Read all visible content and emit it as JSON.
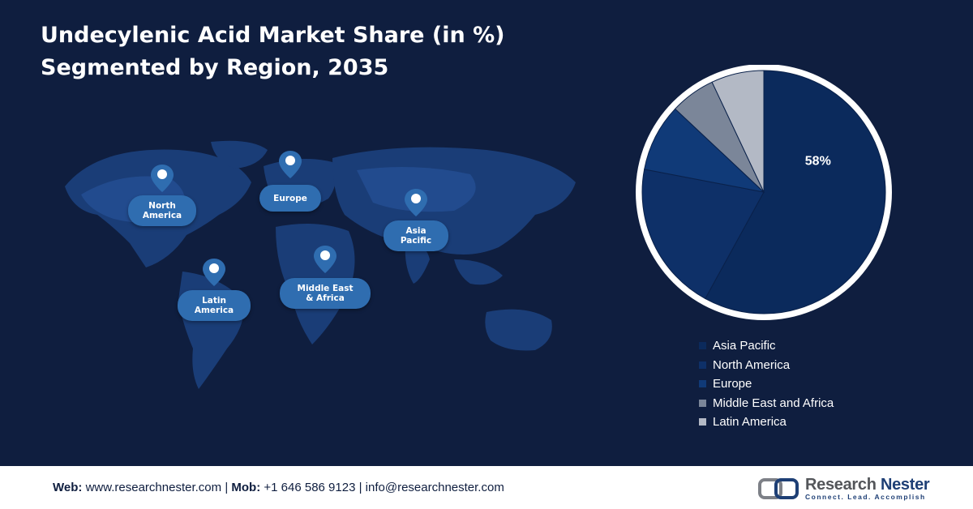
{
  "title": {
    "line1": "Undecylenic Acid Market Share (in %)",
    "line2": "Segmented by Region, 2035"
  },
  "map": {
    "pins": [
      {
        "line1": "North",
        "line2": "America"
      },
      {
        "line1": "Europe",
        "line2": ""
      },
      {
        "line1": "Asia",
        "line2": "Pacific"
      },
      {
        "line1": "Latin",
        "line2": "America"
      },
      {
        "line1": "Middle East",
        "line2": "& Africa"
      }
    ]
  },
  "chart_data": {
    "type": "pie",
    "title": "Undecylenic Acid Market Share (in %) Segmented by Region, 2035",
    "categories": [
      "Asia Pacific",
      "North America",
      "Europe",
      "Middle East and Africa",
      "Latin America"
    ],
    "values": [
      58,
      20,
      9,
      6,
      7
    ],
    "colors": [
      "#0b2a5c",
      "#0e3068",
      "#103a78",
      "#7b8699",
      "#b3b9c5"
    ],
    "data_labels": [
      "58%",
      "",
      "",
      "",
      ""
    ],
    "legend_position": "bottom-right"
  },
  "footer": {
    "web_label": "Web:",
    "web": "www.researchnester.com",
    "mob_label": "Mob:",
    "mob": "+1 646 586 9123",
    "email": "info@researchnester.com",
    "separator": "|",
    "brand_name_1": "Research",
    "brand_name_2": "Nester",
    "brand_tagline": "Connect. Lead. Accomplish"
  }
}
